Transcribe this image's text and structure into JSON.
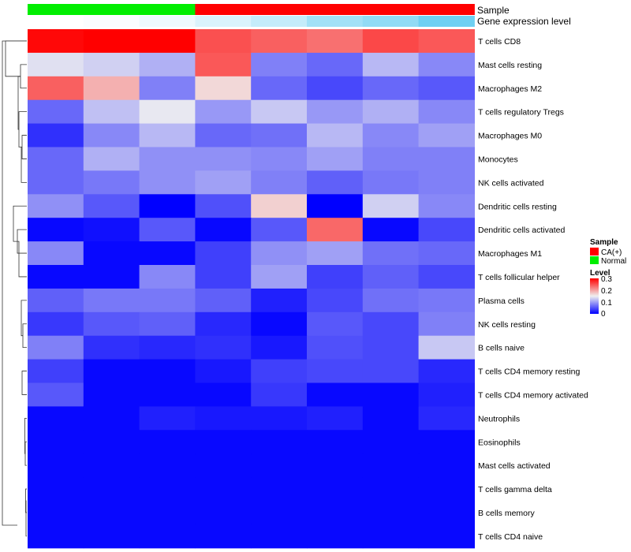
{
  "chart_data": {
    "type": "heatmap",
    "title": "",
    "annotation_labels": [
      "Sample",
      "Gene expression level"
    ],
    "columns": [
      {
        "sample": "Normal",
        "expr": 0.0
      },
      {
        "sample": "Normal",
        "expr": 0.03
      },
      {
        "sample": "Normal",
        "expr": 0.1
      },
      {
        "sample": "CA(+)",
        "expr": 0.22
      },
      {
        "sample": "CA(+)",
        "expr": 0.35
      },
      {
        "sample": "CA(+)",
        "expr": 0.55
      },
      {
        "sample": "CA(+)",
        "expr": 0.65
      },
      {
        "sample": "CA(+)",
        "expr": 0.85
      }
    ],
    "rows": [
      "T cells CD8",
      "Mast cells resting",
      "Macrophages M2",
      "T cells regulatory  Tregs",
      "Macrophages M0",
      "Monocytes",
      "NK cells activated",
      "Dendritic cells resting",
      "Dendritic cells activated",
      "Macrophages M1",
      "T cells follicular helper",
      "Plasma cells",
      "NK cells resting",
      "B cells naive",
      "T cells CD4 memory resting",
      "T cells CD4 memory activated",
      "Neutrophils",
      "Eosinophils",
      "Mast cells activated",
      "T cells gamma delta",
      "B cells memory",
      "T cells CD4 naive"
    ],
    "values": [
      [
        0.295,
        0.3,
        0.3,
        0.25,
        0.24,
        0.23,
        0.255,
        0.245
      ],
      [
        0.14,
        0.13,
        0.11,
        0.245,
        0.08,
        0.065,
        0.115,
        0.085
      ],
      [
        0.24,
        0.19,
        0.08,
        0.165,
        0.065,
        0.045,
        0.065,
        0.055
      ],
      [
        0.065,
        0.12,
        0.145,
        0.095,
        0.125,
        0.095,
        0.11,
        0.085
      ],
      [
        0.03,
        0.085,
        0.115,
        0.065,
        0.07,
        0.115,
        0.085,
        0.1
      ],
      [
        0.065,
        0.11,
        0.09,
        0.09,
        0.085,
        0.1,
        0.08,
        0.08
      ],
      [
        0.065,
        0.075,
        0.09,
        0.1,
        0.08,
        0.06,
        0.075,
        0.08
      ],
      [
        0.09,
        0.055,
        0.0,
        0.05,
        0.17,
        0.0,
        0.13,
        0.085
      ],
      [
        0.005,
        0.01,
        0.055,
        0.005,
        0.055,
        0.235,
        0.005,
        0.045
      ],
      [
        0.085,
        0.005,
        0.005,
        0.04,
        0.09,
        0.1,
        0.07,
        0.065
      ],
      [
        0.005,
        0.005,
        0.085,
        0.04,
        0.1,
        0.04,
        0.06,
        0.045
      ],
      [
        0.06,
        0.075,
        0.075,
        0.06,
        0.02,
        0.045,
        0.07,
        0.075
      ],
      [
        0.035,
        0.055,
        0.06,
        0.025,
        0.005,
        0.055,
        0.045,
        0.08
      ],
      [
        0.08,
        0.03,
        0.025,
        0.03,
        0.015,
        0.05,
        0.045,
        0.125
      ],
      [
        0.04,
        0.005,
        0.005,
        0.015,
        0.04,
        0.045,
        0.045,
        0.025
      ],
      [
        0.055,
        0.005,
        0.005,
        0.005,
        0.035,
        0.005,
        0.005,
        0.02
      ],
      [
        0.005,
        0.005,
        0.02,
        0.015,
        0.015,
        0.02,
        0.005,
        0.025
      ],
      [
        0.005,
        0.005,
        0.005,
        0.005,
        0.005,
        0.005,
        0.005,
        0.005
      ],
      [
        0.005,
        0.005,
        0.005,
        0.005,
        0.005,
        0.005,
        0.005,
        0.005
      ],
      [
        0.005,
        0.005,
        0.005,
        0.005,
        0.005,
        0.005,
        0.005,
        0.005
      ],
      [
        0.005,
        0.005,
        0.005,
        0.005,
        0.005,
        0.005,
        0.005,
        0.005
      ],
      [
        0.005,
        0.005,
        0.005,
        0.005,
        0.005,
        0.005,
        0.005,
        0.005
      ]
    ],
    "color_scale": {
      "min": 0,
      "max": 0.3,
      "low": "#0000FF",
      "mid": "#F0F0F0",
      "high": "#FF0000"
    },
    "sample_colors": {
      "CA(+)": "#FF0000",
      "Normal": "#00EE00"
    },
    "expr_colors": {
      "low": "#FFFFFF",
      "high": "#56C8F0"
    },
    "legend": {
      "position": "right",
      "sample_title": "Sample",
      "sample_items": [
        "CA(+)",
        "Normal"
      ],
      "level_title": "Level",
      "level_ticks": [
        "0.3",
        "0.2",
        "0.1",
        "0"
      ]
    }
  }
}
